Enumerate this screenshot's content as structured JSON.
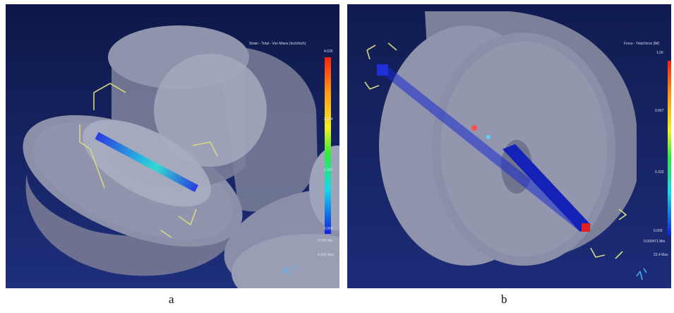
{
  "figure_labels": {
    "a": "a",
    "b": "b"
  },
  "panel_a": {
    "legend_title": "Strain - Total - Von Mises (Inch/Inch)",
    "legend_values": [
      "4.026",
      "2.604",
      "1.342",
      "0.000"
    ],
    "min_label": "0.000 Min",
    "max_label": "4.026 Max"
  },
  "panel_b": {
    "legend_title": "Force - Total force (lbf)",
    "legend_values": [
      "1.00",
      "0.667",
      "0.333",
      "0.000"
    ],
    "min_label": "0.000471 Min",
    "max_label": "22.4 Max"
  },
  "colors": {
    "background_top": "#0e1a4a",
    "background_bottom": "#1c2f7a",
    "part": "#8a8ea6"
  }
}
